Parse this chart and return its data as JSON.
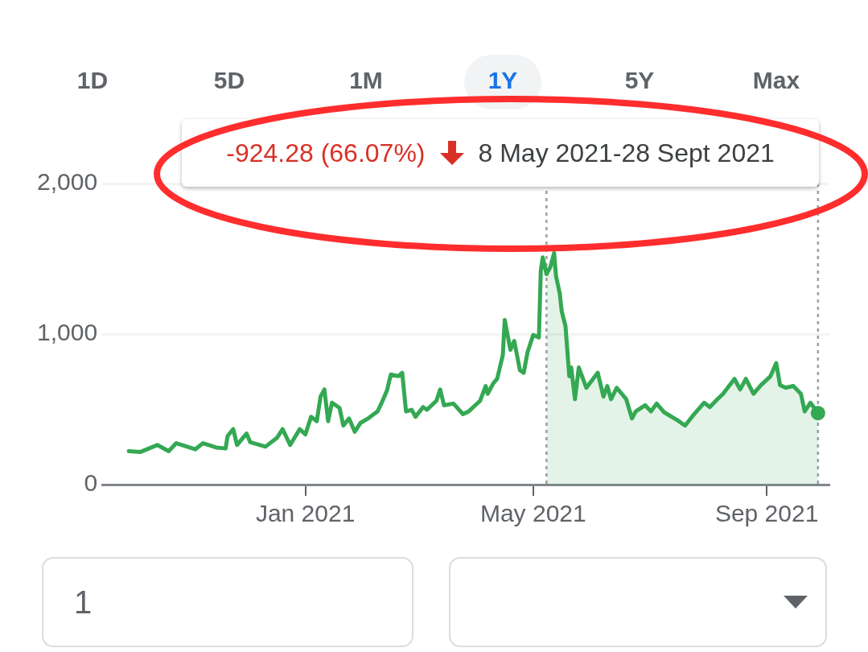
{
  "chart_data": {
    "type": "line",
    "x": [
      "2020-09-30",
      "2020-10-06",
      "2020-10-15",
      "2020-10-21",
      "2020-10-25",
      "2020-11-04",
      "2020-11-08",
      "2020-11-15",
      "2020-11-20",
      "2020-11-21",
      "2020-11-24",
      "2020-11-26",
      "2020-12-01",
      "2020-12-03",
      "2020-12-11",
      "2020-12-17",
      "2020-12-20",
      "2020-12-24",
      "2020-12-29",
      "2021-01-01",
      "2021-01-04",
      "2021-01-07",
      "2021-01-09",
      "2021-01-11",
      "2021-01-13",
      "2021-01-15",
      "2021-01-19",
      "2021-01-21",
      "2021-01-24",
      "2021-01-27",
      "2021-01-30",
      "2021-02-03",
      "2021-02-06",
      "2021-02-08",
      "2021-02-10",
      "2021-02-13",
      "2021-02-15",
      "2021-02-19",
      "2021-02-21",
      "2021-02-23",
      "2021-02-26",
      "2021-02-28",
      "2021-03-04",
      "2021-03-06",
      "2021-03-11",
      "2021-03-13",
      "2021-03-15",
      "2021-03-20",
      "2021-03-25",
      "2021-03-28",
      "2021-04-03",
      "2021-04-06",
      "2021-04-07",
      "2021-04-10",
      "2021-04-12",
      "2021-04-15",
      "2021-04-16",
      "2021-04-19",
      "2021-04-21",
      "2021-04-24",
      "2021-04-26",
      "2021-04-28",
      "2021-05-01",
      "2021-05-04",
      "2021-05-05",
      "2021-05-06",
      "2021-05-08"
    ],
    "series": [
      {
        "color": "#34a853",
        "values": [
          222,
          216,
          263,
          222,
          275,
          234,
          275,
          246,
          240,
          322,
          368,
          263,
          339,
          281,
          252,
          310,
          368,
          263,
          368,
          333,
          450,
          421,
          585,
          632,
          421,
          544,
          509,
          392,
          439,
          351,
          409,
          439,
          468,
          486,
          538,
          626,
          731,
          720,
          743,
          486,
          497,
          450,
          515,
          497,
          556,
          632,
          527,
          538,
          468,
          486,
          556,
          655,
          603,
          673,
          702,
          860,
          1094,
          895,
          954,
          760,
          743,
          878,
          994,
          977,
          1421,
          1509,
          1399
        ]
      },
      {
        "type": "area",
        "color": "#34a853",
        "x": [
          "2021-05-08",
          "2021-05-10",
          "2021-05-12",
          "2021-05-13",
          "2021-05-15",
          "2021-05-16",
          "2021-05-18",
          "2021-05-20",
          "2021-05-21",
          "2021-05-23",
          "2021-05-25",
          "2021-05-29",
          "2021-06-04",
          "2021-06-07",
          "2021-06-09",
          "2021-06-11",
          "2021-06-14",
          "2021-06-19",
          "2021-06-22",
          "2021-06-24",
          "2021-06-29",
          "2021-07-02",
          "2021-07-05",
          "2021-07-09",
          "2021-07-16",
          "2021-07-20",
          "2021-07-24",
          "2021-07-30",
          "2021-08-02",
          "2021-08-06",
          "2021-08-09",
          "2021-08-15",
          "2021-08-18",
          "2021-08-21",
          "2021-08-25",
          "2021-08-29",
          "2021-09-03",
          "2021-09-06",
          "2021-09-08",
          "2021-09-11",
          "2021-09-15",
          "2021-09-19",
          "2021-09-21",
          "2021-09-24",
          "2021-09-28"
        ],
        "values": [
          1399,
          1445,
          1538,
          1386,
          1269,
          1152,
          1053,
          720,
          778,
          567,
          778,
          643,
          743,
          585,
          655,
          567,
          643,
          567,
          439,
          486,
          527,
          486,
          538,
          480,
          427,
          392,
          456,
          544,
          515,
          567,
          603,
          702,
          632,
          702,
          603,
          661,
          720,
          807,
          661,
          643,
          655,
          603,
          486,
          544,
          475
        ]
      }
    ],
    "xlim": [
      "2020-09-16",
      "2021-10-04"
    ],
    "xticks": [
      {
        "value": "2021-01-01",
        "label": "Jan 2021"
      },
      {
        "value": "2021-05-01",
        "label": "May 2021"
      },
      {
        "value": "2021-09-01",
        "label": "Sep 2021"
      }
    ],
    "ylim": [
      0,
      2000
    ],
    "yticks": [
      0,
      {
        "value": 1000,
        "label": "1,000"
      },
      {
        "value": 2000,
        "label": "2,000"
      }
    ],
    "grid": "y",
    "legend": false,
    "marker": "none",
    "line_style": "solid",
    "ref_lines": [
      {
        "axis": "x",
        "value": "2021-05-08",
        "color": "#9aa0a6",
        "line_style": "dotted"
      },
      {
        "axis": "x",
        "value": "2021-09-28",
        "color": "#9aa0a6",
        "line_style": "dotted"
      }
    ],
    "annotations": [
      "-924.28 (66.07%)",
      "8 May 2021-28 Sept 2021",
      "1D",
      "5D",
      "1M",
      "1Y",
      "5Y",
      "Max",
      "1"
    ]
  }
}
